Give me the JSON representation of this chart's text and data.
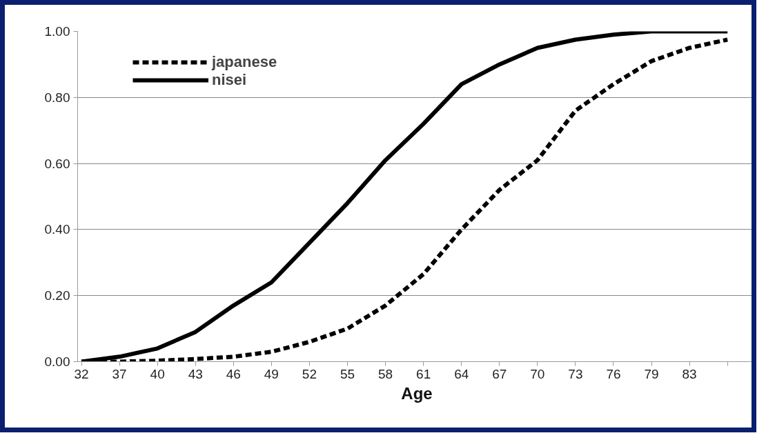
{
  "chart_data": {
    "type": "line",
    "xlabel": "Age",
    "categories": [
      "32",
      "37",
      "40",
      "43",
      "46",
      "49",
      "52",
      "55",
      "58",
      "61",
      "64",
      "67",
      "70",
      "73",
      "76",
      "79",
      "83",
      null
    ],
    "series": [
      {
        "name": "japanese",
        "color": "#000000",
        "line_style": "dashed",
        "values": [
          0.0,
          0.0,
          0.003,
          0.008,
          0.015,
          0.03,
          0.06,
          0.1,
          0.17,
          0.265,
          0.4,
          0.52,
          0.61,
          0.76,
          0.84,
          0.91,
          0.95,
          0.975
        ]
      },
      {
        "name": "nisei",
        "color": "#000000",
        "line_style": "solid",
        "values": [
          0.0,
          0.015,
          0.04,
          0.09,
          0.17,
          0.24,
          0.36,
          0.48,
          0.61,
          0.72,
          0.84,
          0.9,
          0.95,
          0.975,
          0.99,
          1.0,
          1.0,
          1.0
        ]
      }
    ],
    "ylim": [
      0,
      1
    ],
    "yticks": [
      {
        "value": 0,
        "label": "0.00"
      },
      {
        "value": 0.2,
        "label": "0.20"
      },
      {
        "value": 0.4,
        "label": "0.40"
      },
      {
        "value": 0.6,
        "label": "0.60"
      },
      {
        "value": 0.8,
        "label": "0.80"
      },
      {
        "value": 1,
        "label": "1.00"
      }
    ],
    "grid": "y",
    "legend": "top left"
  }
}
